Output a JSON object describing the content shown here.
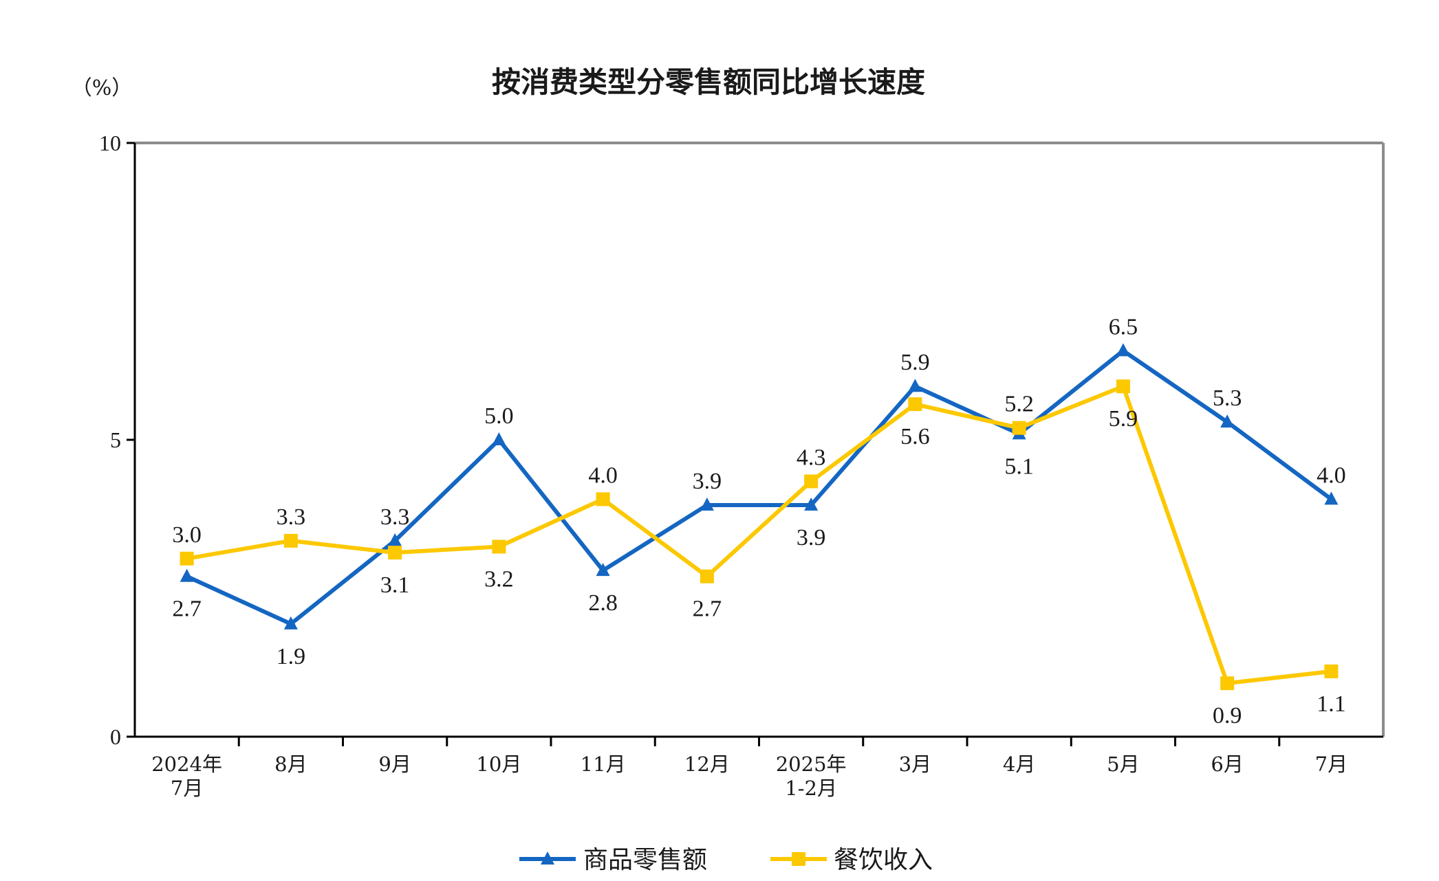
{
  "chart_data": {
    "type": "line",
    "title": "按消费类型分零售额同比增长速度",
    "unit_label": "（%）",
    "ylim": [
      0,
      10
    ],
    "yticks": [
      "0",
      "5",
      "10"
    ],
    "categories": [
      [
        "2024年",
        "7月"
      ],
      [
        "8月"
      ],
      [
        "9月"
      ],
      [
        "10月"
      ],
      [
        "11月"
      ],
      [
        "12月"
      ],
      [
        "2025年",
        "1-2月"
      ],
      [
        "3月"
      ],
      [
        "4月"
      ],
      [
        "5月"
      ],
      [
        "6月"
      ],
      [
        "7月"
      ]
    ],
    "series": [
      {
        "name": "商品零售额",
        "color": "#1466c2",
        "marker": "triangle",
        "values": [
          2.7,
          1.9,
          3.3,
          5.0,
          2.8,
          3.9,
          3.9,
          5.9,
          5.1,
          6.5,
          5.3,
          4.0
        ],
        "labels": [
          "2.7",
          "1.9",
          "3.3",
          "5.0",
          "2.8",
          "3.9",
          "3.9",
          "5.9",
          "5.1",
          "6.5",
          "5.3",
          "4.0"
        ],
        "label_sides": [
          "below",
          "below",
          "above",
          "above",
          "below",
          "above",
          "below",
          "above",
          "below",
          "above",
          "above",
          "above"
        ]
      },
      {
        "name": "餐饮收入",
        "color": "#fcc800",
        "marker": "square",
        "values": [
          3.0,
          3.3,
          3.1,
          3.2,
          4.0,
          2.7,
          4.3,
          5.6,
          5.2,
          5.9,
          0.9,
          1.1
        ],
        "labels": [
          "3.0",
          "3.3",
          "3.1",
          "3.2",
          "4.0",
          "2.7",
          "4.3",
          "5.6",
          "5.2",
          "5.9",
          "0.9",
          "1.1"
        ],
        "label_sides": [
          "above",
          "above",
          "below",
          "below",
          "above",
          "below",
          "above",
          "below",
          "above",
          "below",
          "below",
          "below"
        ]
      }
    ],
    "grid": false,
    "legend_position": "bottom-center"
  }
}
